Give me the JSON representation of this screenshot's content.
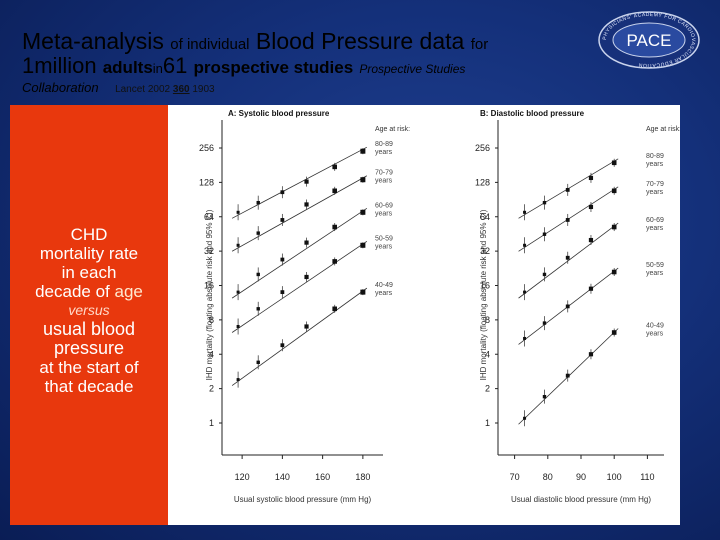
{
  "title": {
    "line1_part1": "Meta-analysis",
    "line1_part2": "of individual",
    "line1_part3": "Blood Pressure data",
    "line1_part4": "for",
    "line2_part1": "1million",
    "line2_part2": "adults",
    "line2_part3": "in",
    "line2_part4": "61",
    "line2_part5": "prospective studies",
    "line2_part6": "Prospective Studies",
    "line3_collab": "Collaboration",
    "line3_cite_prefix": "Lancet 2002",
    "line3_cite_vol": "360",
    "line3_cite_page": "1903"
  },
  "sidebar": {
    "line1": "CHD",
    "line2": "mortality rate",
    "line3": "in each",
    "line4": "decade of",
    "line4_age": "age",
    "versus": "versus",
    "usual1": "usual blood",
    "usual2": "pressure",
    "usual3": "at the start of",
    "usual4": "that decade"
  },
  "logo": {
    "ring_text": "PHYSICIANS' ACADEMY FOR CARDIOVASCULAR EDUCATION",
    "text": "PACE"
  },
  "colors": {
    "sidebar": "#e8380d",
    "background": "#14307a"
  },
  "chart_data": [
    {
      "type": "line",
      "title": "A: Systolic blood pressure",
      "xlabel": "Usual systolic blood pressure (mm Hg)",
      "ylabel": "IHD mortality (floating absolute risk and 95% CI)",
      "yscale": "log2",
      "ylim": [
        0.5,
        400
      ],
      "xlim": [
        110,
        190
      ],
      "xticks": [
        120,
        140,
        160,
        180
      ],
      "yticks": [
        1,
        2,
        4,
        8,
        16,
        32,
        64,
        128,
        256
      ],
      "legend_title": "Age at risk:",
      "series": [
        {
          "name": "80-89",
          "label2": "years",
          "x": [
            118,
            128,
            140,
            152,
            166,
            180
          ],
          "y": [
            70,
            85,
            105,
            130,
            175,
            240
          ]
        },
        {
          "name": "70-79",
          "label2": "years",
          "x": [
            118,
            128,
            140,
            152,
            166,
            180
          ],
          "y": [
            36,
            46,
            60,
            82,
            108,
            135
          ]
        },
        {
          "name": "60-69",
          "label2": "years",
          "x": [
            118,
            128,
            140,
            152,
            166,
            180
          ],
          "y": [
            14,
            20,
            27,
            38,
            52,
            70
          ]
        },
        {
          "name": "50-59",
          "label2": "years",
          "x": [
            118,
            128,
            140,
            152,
            166,
            180
          ],
          "y": [
            7,
            10,
            14,
            19,
            26,
            36
          ]
        },
        {
          "name": "40-49",
          "label2": "years",
          "x": [
            118,
            128,
            140,
            152,
            166,
            180
          ],
          "y": [
            2.4,
            3.4,
            4.8,
            7,
            10,
            14
          ]
        }
      ]
    },
    {
      "type": "line",
      "title": "B: Diastolic blood pressure",
      "xlabel": "Usual diastolic blood pressure (mm Hg)",
      "ylabel": "IHD mortality (floating absolute risk and 95% CI)",
      "yscale": "log2",
      "ylim": [
        0.5,
        400
      ],
      "xlim": [
        65,
        115
      ],
      "xticks": [
        70,
        80,
        90,
        100,
        110
      ],
      "yticks": [
        1,
        2,
        4,
        8,
        16,
        32,
        64,
        128,
        256
      ],
      "legend_title": "Age at risk:",
      "series": [
        {
          "name": "80-89",
          "label2": "years",
          "x": [
            73,
            79,
            86,
            93,
            100
          ],
          "y": [
            70,
            85,
            110,
            140,
            190
          ]
        },
        {
          "name": "70-79",
          "label2": "years",
          "x": [
            73,
            79,
            86,
            93,
            100
          ],
          "y": [
            36,
            45,
            60,
            78,
            108
          ]
        },
        {
          "name": "60-69",
          "label2": "years",
          "x": [
            73,
            79,
            86,
            93,
            100
          ],
          "y": [
            14,
            20,
            28,
            40,
            52
          ]
        },
        {
          "name": "50-59",
          "label2": "years",
          "x": [
            73,
            79,
            86,
            93,
            100
          ],
          "y": [
            5.5,
            7.5,
            10.5,
            15,
            21
          ]
        },
        {
          "name": "40-49",
          "label2": "years",
          "x": [
            73,
            79,
            86,
            93,
            100
          ],
          "y": [
            1.1,
            1.7,
            2.6,
            4,
            6.2
          ]
        }
      ]
    }
  ]
}
